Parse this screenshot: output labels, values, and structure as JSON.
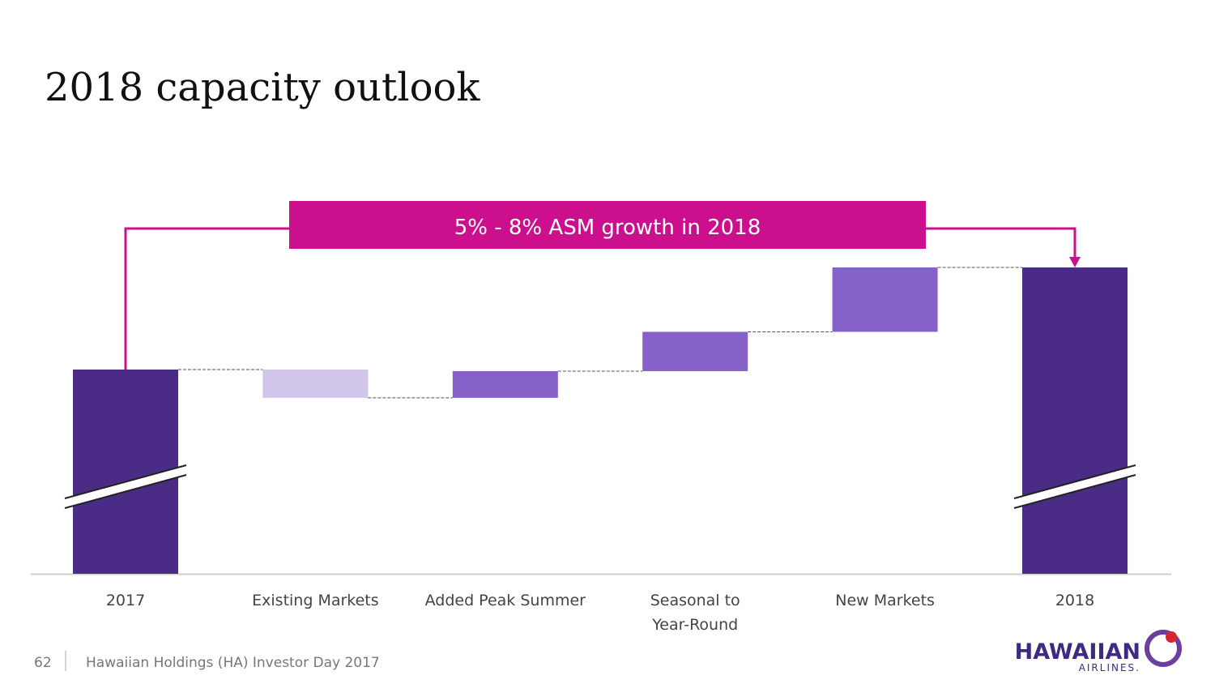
{
  "chart_data": {
    "type": "waterfall",
    "title": "2018 capacity outlook",
    "annotation": "5% - 8% ASM growth in 2018",
    "categories": [
      "2017",
      "Existing Markets",
      "Added Peak Summer",
      "Seasonal to\nYear-Round",
      "New Markets",
      "2018"
    ],
    "values": [
      100,
      -1.8,
      1.7,
      2.5,
      4.1,
      106.5
    ],
    "total_color": "#4a2c86",
    "increase_color": "#8561c9",
    "decrease_color": "#d1c5ea",
    "annotation_color": "#cc0f8c"
  },
  "footer": {
    "page": "62",
    "text": "Hawaiian Holdings (HA) Investor Day 2017"
  },
  "logo": {
    "name": "HAWAIIAN",
    "sub": "AIRLINES."
  }
}
